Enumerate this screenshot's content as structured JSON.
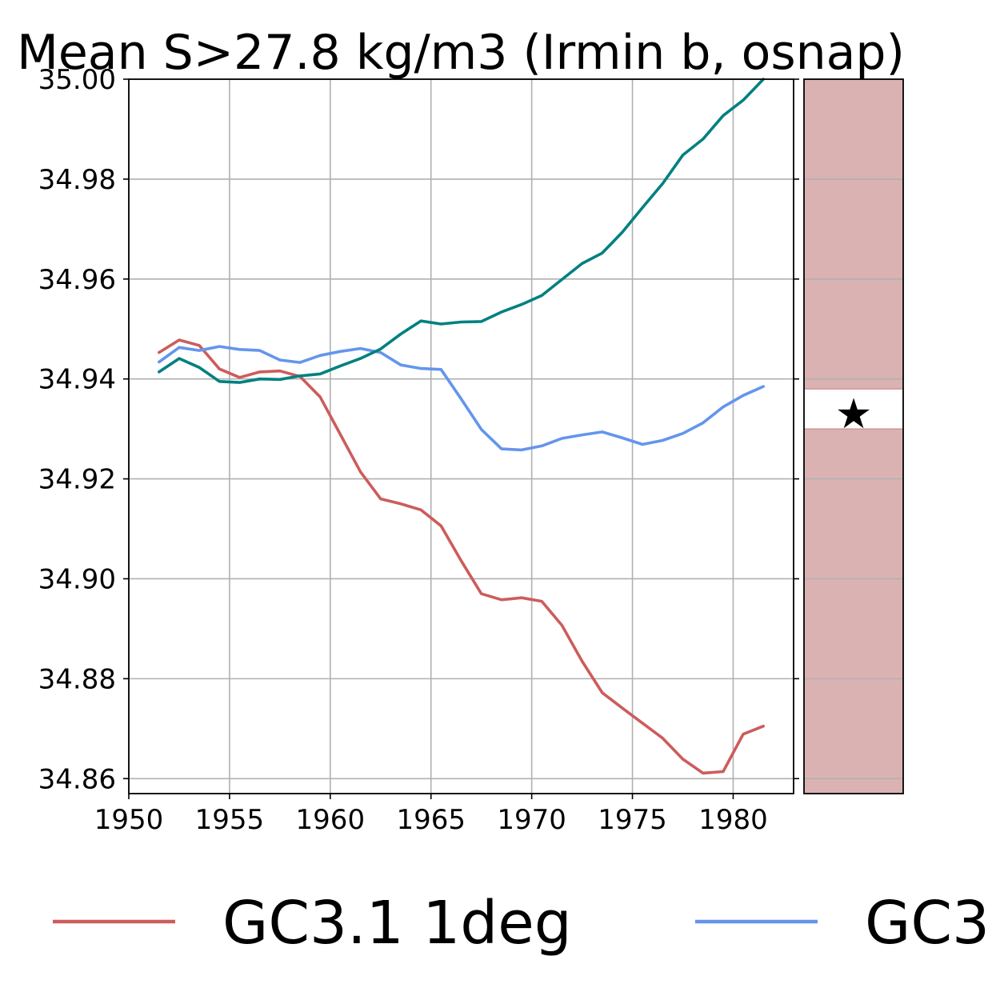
{
  "chart_data": {
    "type": "line",
    "title": "Mean S>27.8 kg/m3 (Irmin b, osnap)",
    "xlabel": "",
    "ylabel": "",
    "xlim": [
      1950,
      1983
    ],
    "ylim": [
      34.857,
      35.0
    ],
    "x_ticks": [
      1950,
      1955,
      1960,
      1965,
      1970,
      1975,
      1980
    ],
    "y_ticks": [
      34.86,
      34.88,
      34.9,
      34.92,
      34.94,
      34.96,
      34.98,
      35.0
    ],
    "x_tick_labels": [
      "1950",
      "1955",
      "1960",
      "1965",
      "1970",
      "1975",
      "1980"
    ],
    "y_tick_labels": [
      "34.86",
      "34.88",
      "34.90",
      "34.92",
      "34.94",
      "34.96",
      "34.98",
      "35.00"
    ],
    "grid": true,
    "legend_position": "bottom",
    "x": [
      1951.5,
      1952.5,
      1953.5,
      1954.5,
      1955.5,
      1956.5,
      1957.5,
      1958.5,
      1959.5,
      1960.5,
      1961.5,
      1962.5,
      1963.5,
      1964.5,
      1965.5,
      1966.5,
      1967.5,
      1968.5,
      1969.5,
      1970.5,
      1971.5,
      1972.5,
      1973.5,
      1974.5,
      1975.5,
      1976.5,
      1977.5,
      1978.5,
      1979.5,
      1980.5,
      1981.5
    ],
    "series": [
      {
        "name": "GC3.1 1deg",
        "color": "#cd5c5c",
        "values": [
          34.9453,
          34.9478,
          34.9467,
          34.942,
          34.9403,
          34.9414,
          34.9416,
          34.9405,
          34.9364,
          34.9289,
          34.9214,
          34.916,
          34.915,
          34.9138,
          34.9106,
          34.9036,
          34.897,
          34.8958,
          34.8962,
          34.8955,
          34.8907,
          34.8835,
          34.8772,
          34.8741,
          34.8711,
          34.8681,
          34.8639,
          34.8611,
          34.8614,
          34.8689,
          34.8705
        ]
      },
      {
        "name": "GC3",
        "color": "#6495ed",
        "values": [
          34.9434,
          34.9463,
          34.9457,
          34.9465,
          34.9459,
          34.9457,
          34.9438,
          34.9433,
          34.9447,
          34.9455,
          34.9461,
          34.9453,
          34.9428,
          34.9421,
          34.9419,
          34.936,
          34.9299,
          34.926,
          34.9258,
          34.9266,
          34.9281,
          34.9288,
          34.9294,
          34.9282,
          34.9269,
          34.9277,
          34.9291,
          34.9312,
          34.9344,
          34.9367,
          34.9385
        ]
      },
      {
        "name": "",
        "color": "#008080",
        "values": [
          34.9414,
          34.9441,
          34.9423,
          34.9395,
          34.9393,
          34.94,
          34.9399,
          34.9406,
          34.941,
          34.9426,
          34.9441,
          34.946,
          34.949,
          34.9516,
          34.951,
          34.9514,
          34.9515,
          34.9534,
          34.9549,
          34.9567,
          34.9599,
          34.9631,
          34.9652,
          34.9694,
          34.9743,
          34.9791,
          34.9848,
          34.988,
          34.9927,
          34.9958,
          35.0
        ]
      }
    ],
    "side_panel": {
      "band_color": "#dbb2b2",
      "band_low": 34.93,
      "band_high": 34.938,
      "marker_value": 34.9334,
      "marker_symbol": "★"
    },
    "legend": {
      "entries": [
        {
          "label": "GC3.1 1deg",
          "color": "#cd5c5c"
        },
        {
          "label": "GC3",
          "color": "#6495ed"
        }
      ]
    }
  }
}
